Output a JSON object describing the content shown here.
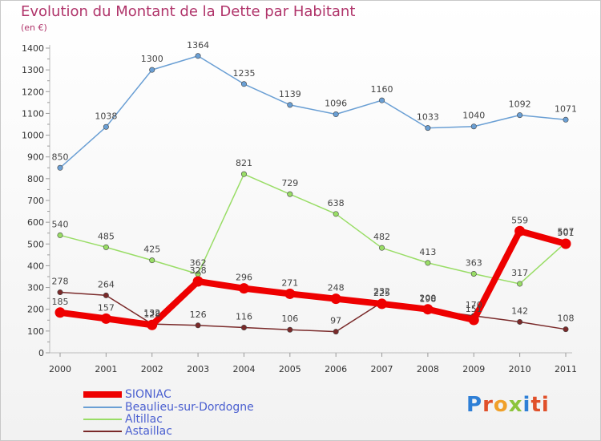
{
  "header": {
    "title": "Evolution du Montant de la Dette par Habitant",
    "subtitle": "(en €)"
  },
  "logo": {
    "text": "Proxiti",
    "letters": [
      "P",
      "r",
      "o",
      "x",
      "i",
      "ti"
    ]
  },
  "chart_data": {
    "type": "line",
    "title": "Evolution du Montant de la Dette par Habitant",
    "subtitle": "(en €)",
    "xlabel": "",
    "ylabel": "",
    "categories": [
      "2000",
      "2001",
      "2002",
      "2003",
      "2004",
      "2005",
      "2006",
      "2007",
      "2008",
      "2009",
      "2010",
      "2011"
    ],
    "ylim": [
      0,
      1400
    ],
    "yticks": [
      0,
      100,
      200,
      300,
      400,
      500,
      600,
      700,
      800,
      900,
      1000,
      1100,
      1200,
      1300,
      1400
    ],
    "grid": false,
    "legend_position": "bottom-left",
    "series": [
      {
        "name": "SIONIAC",
        "color": "#ee0000",
        "values": [
          185,
          157,
          128,
          328,
          296,
          271,
          248,
          225,
          200,
          151,
          559,
          501
        ]
      },
      {
        "name": "Beaulieu-sur-Dordogne",
        "color": "#6a9fd4",
        "values": [
          850,
          1038,
          1300,
          1364,
          1235,
          1139,
          1096,
          1160,
          1033,
          1040,
          1092,
          1071
        ]
      },
      {
        "name": "Altillac",
        "color": "#99dd66",
        "values": [
          540,
          485,
          425,
          362,
          821,
          729,
          638,
          482,
          413,
          363,
          317,
          507
        ]
      },
      {
        "name": "Astaillac",
        "color": "#7a2a2a",
        "values": [
          278,
          264,
          132,
          126,
          116,
          106,
          97,
          232,
          198,
          170,
          142,
          108
        ]
      }
    ]
  }
}
